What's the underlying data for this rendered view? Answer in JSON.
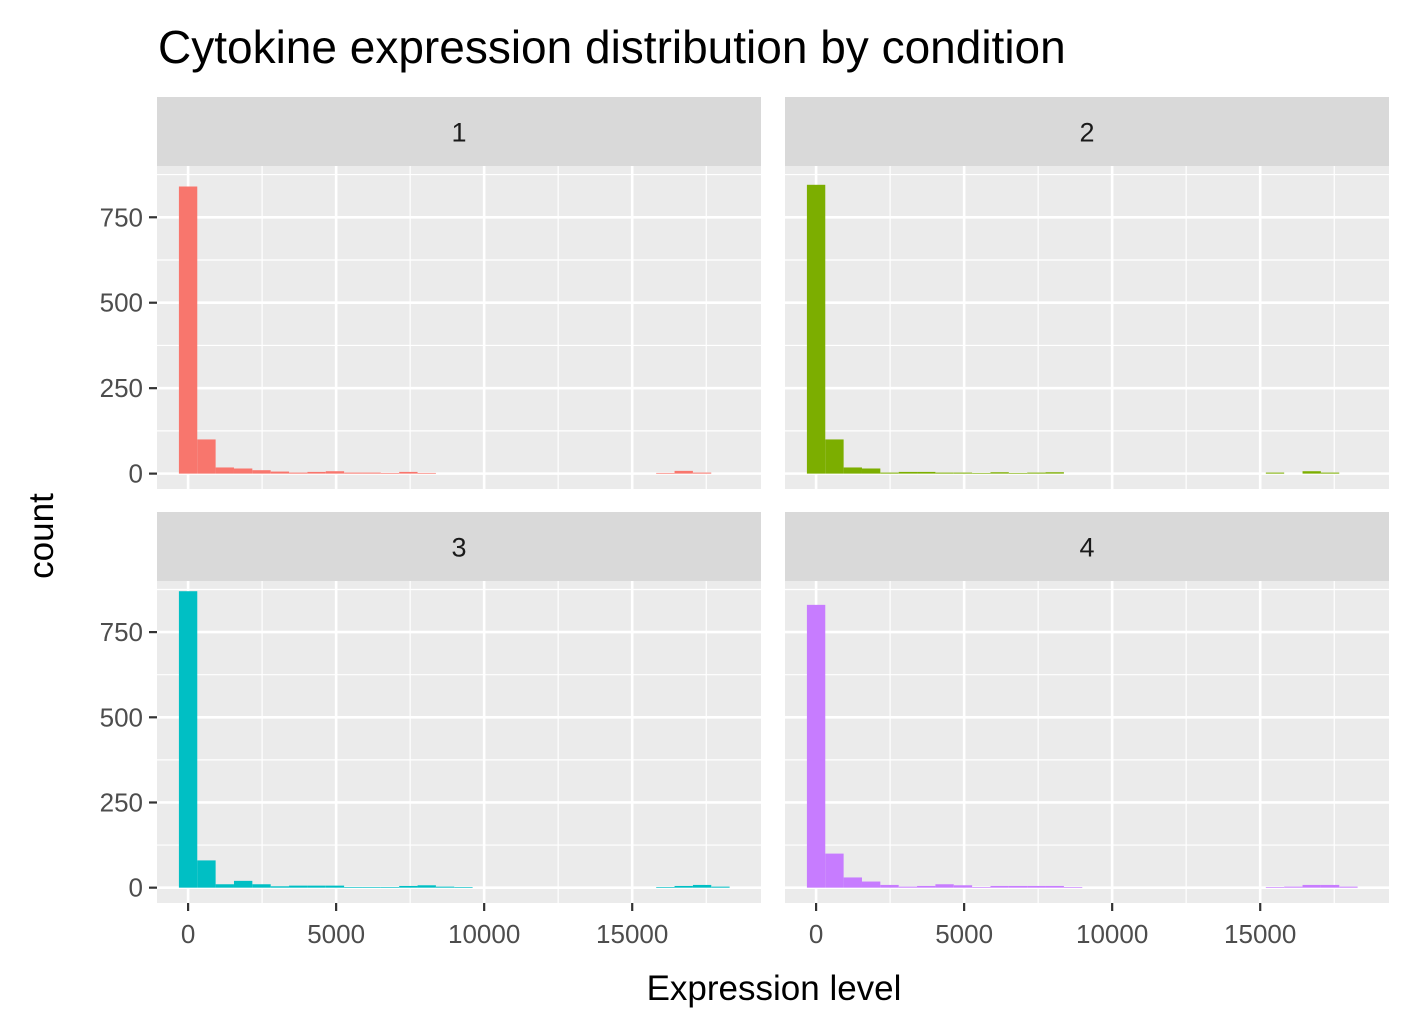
{
  "chart_data": {
    "type": "bar",
    "title": "Cytokine expression distribution by condition",
    "xlabel": "Expression level",
    "ylabel": "count",
    "xlim": [
      -1050,
      19350
    ],
    "ylim": [
      -45,
      900
    ],
    "x_ticks": [
      0,
      5000,
      10000,
      15000
    ],
    "x_tick_labels": [
      "0",
      "5000",
      "10000",
      "15000"
    ],
    "x_minor_ticks": [
      2500,
      7500,
      12500,
      17500
    ],
    "y_ticks": [
      0,
      250,
      500,
      750
    ],
    "y_tick_labels": [
      "0",
      "250",
      "500",
      "750"
    ],
    "y_minor_ticks": [
      125,
      375,
      625,
      875
    ],
    "bin_width": 620,
    "grid": true,
    "legend": "none",
    "facets": [
      {
        "label": "1",
        "color": "#F8766D",
        "bins": [
          {
            "x": 0,
            "count": 840
          },
          {
            "x": 620,
            "count": 100
          },
          {
            "x": 1240,
            "count": 18
          },
          {
            "x": 1860,
            "count": 15
          },
          {
            "x": 2480,
            "count": 10
          },
          {
            "x": 3100,
            "count": 6
          },
          {
            "x": 3720,
            "count": 3
          },
          {
            "x": 4340,
            "count": 5
          },
          {
            "x": 4960,
            "count": 7
          },
          {
            "x": 5580,
            "count": 3
          },
          {
            "x": 6200,
            "count": 3
          },
          {
            "x": 6820,
            "count": 2
          },
          {
            "x": 7440,
            "count": 5
          },
          {
            "x": 8060,
            "count": 2
          },
          {
            "x": 16120,
            "count": 2
          },
          {
            "x": 16740,
            "count": 8
          },
          {
            "x": 17360,
            "count": 3
          }
        ]
      },
      {
        "label": "2",
        "color": "#7CAE00",
        "bins": [
          {
            "x": 0,
            "count": 845
          },
          {
            "x": 620,
            "count": 100
          },
          {
            "x": 1240,
            "count": 18
          },
          {
            "x": 1860,
            "count": 15
          },
          {
            "x": 2480,
            "count": 3
          },
          {
            "x": 3100,
            "count": 5
          },
          {
            "x": 3720,
            "count": 5
          },
          {
            "x": 4340,
            "count": 3
          },
          {
            "x": 4960,
            "count": 3
          },
          {
            "x": 5580,
            "count": 2
          },
          {
            "x": 6200,
            "count": 4
          },
          {
            "x": 6820,
            "count": 2
          },
          {
            "x": 7440,
            "count": 3
          },
          {
            "x": 8060,
            "count": 4
          },
          {
            "x": 15500,
            "count": 3
          },
          {
            "x": 16740,
            "count": 7
          },
          {
            "x": 17360,
            "count": 3
          }
        ]
      },
      {
        "label": "3",
        "color": "#00BFC4",
        "bins": [
          {
            "x": 0,
            "count": 870
          },
          {
            "x": 620,
            "count": 80
          },
          {
            "x": 1240,
            "count": 10
          },
          {
            "x": 1860,
            "count": 20
          },
          {
            "x": 2480,
            "count": 10
          },
          {
            "x": 3100,
            "count": 4
          },
          {
            "x": 3720,
            "count": 6
          },
          {
            "x": 4340,
            "count": 6
          },
          {
            "x": 4960,
            "count": 6
          },
          {
            "x": 5580,
            "count": 2
          },
          {
            "x": 6200,
            "count": 2
          },
          {
            "x": 6820,
            "count": 2
          },
          {
            "x": 7440,
            "count": 5
          },
          {
            "x": 8060,
            "count": 7
          },
          {
            "x": 8680,
            "count": 3
          },
          {
            "x": 9300,
            "count": 2
          },
          {
            "x": 16120,
            "count": 2
          },
          {
            "x": 16740,
            "count": 5
          },
          {
            "x": 17360,
            "count": 8
          },
          {
            "x": 17980,
            "count": 3
          }
        ]
      },
      {
        "label": "4",
        "color": "#C77CFF",
        "bins": [
          {
            "x": 0,
            "count": 830
          },
          {
            "x": 620,
            "count": 100
          },
          {
            "x": 1240,
            "count": 30
          },
          {
            "x": 1860,
            "count": 18
          },
          {
            "x": 2480,
            "count": 8
          },
          {
            "x": 3100,
            "count": 3
          },
          {
            "x": 3720,
            "count": 5
          },
          {
            "x": 4340,
            "count": 10
          },
          {
            "x": 4960,
            "count": 7
          },
          {
            "x": 5580,
            "count": 2
          },
          {
            "x": 6200,
            "count": 5
          },
          {
            "x": 6820,
            "count": 5
          },
          {
            "x": 7440,
            "count": 5
          },
          {
            "x": 8060,
            "count": 5
          },
          {
            "x": 8680,
            "count": 2
          },
          {
            "x": 15500,
            "count": 2
          },
          {
            "x": 16120,
            "count": 3
          },
          {
            "x": 16740,
            "count": 8
          },
          {
            "x": 17360,
            "count": 8
          },
          {
            "x": 17980,
            "count": 3
          }
        ]
      }
    ]
  }
}
